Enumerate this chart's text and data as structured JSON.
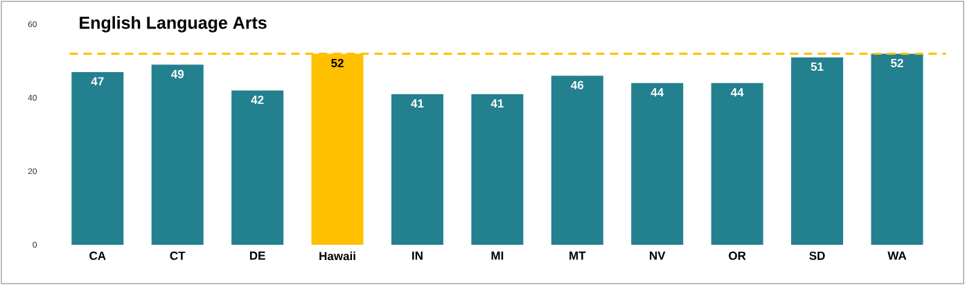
{
  "chart_data": {
    "type": "bar",
    "title": "English Language Arts",
    "categories": [
      "CA",
      "CT",
      "DE",
      "Hawaii",
      "IN",
      "MI",
      "MT",
      "NV",
      "OR",
      "SD",
      "WA"
    ],
    "values": [
      47,
      49,
      42,
      52,
      41,
      41,
      46,
      44,
      44,
      51,
      52
    ],
    "colors": [
      "#23808f",
      "#23808f",
      "#23808f",
      "#ffc000",
      "#23808f",
      "#23808f",
      "#23808f",
      "#23808f",
      "#23808f",
      "#23808f",
      "#23808f"
    ],
    "ylim": [
      0,
      60
    ],
    "yticks": [
      0,
      20,
      40,
      60
    ],
    "grid": false,
    "data_labels": true,
    "ref_lines": [
      {
        "axis": "y",
        "value": 52,
        "color": "#ffc000",
        "line_style": "dashed"
      }
    ]
  }
}
